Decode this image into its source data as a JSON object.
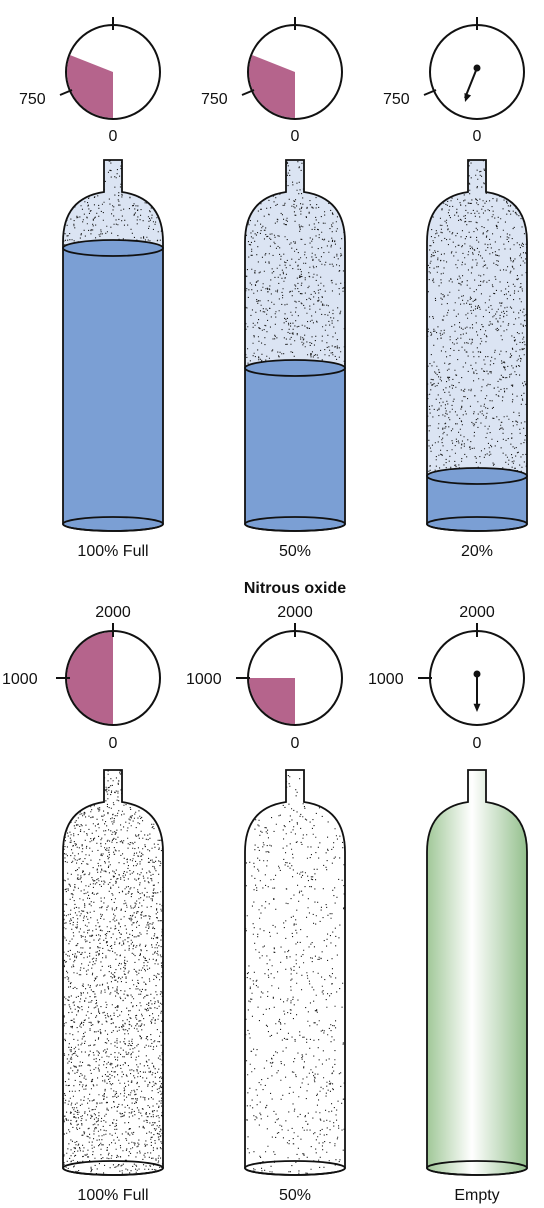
{
  "colors": {
    "gauge_fill": "#b5648c",
    "liquid": "#7b9fd4",
    "vapor_base": "#dbe4f3",
    "dots": "#1a1a1a",
    "empty_tint": "#bcd8b6",
    "outline": "#111111"
  },
  "section_title": "Nitrous oxide",
  "rows": [
    {
      "gauge_max_label": "",
      "gauge_mid_label": "750",
      "gauge_zero_label": "0",
      "cylinders": [
        {
          "gauge_fraction": 0.083,
          "needle": false,
          "liquid_fraction": 0.9,
          "dot_density": "medium",
          "empty": false,
          "caption": "100% Full"
        },
        {
          "gauge_fraction": 0.083,
          "needle": false,
          "liquid_fraction": 0.55,
          "dot_density": "medium",
          "empty": false,
          "caption": "50%"
        },
        {
          "gauge_fraction": 0.0,
          "needle": true,
          "liquid_fraction": 0.18,
          "dot_density": "medium",
          "empty": false,
          "caption": "20%"
        }
      ]
    },
    {
      "gauge_max_label": "2000",
      "gauge_mid_label": "1000",
      "gauge_zero_label": "0",
      "cylinders": [
        {
          "gauge_fraction": 0.5,
          "needle": false,
          "liquid_fraction": 0,
          "dot_density": "high",
          "empty": false,
          "caption": "100% Full"
        },
        {
          "gauge_fraction": 0.25,
          "needle": false,
          "liquid_fraction": 0,
          "dot_density": "low",
          "empty": false,
          "caption": "50%"
        },
        {
          "gauge_fraction": 0.0,
          "needle": true,
          "liquid_fraction": 0,
          "dot_density": "none",
          "empty": true,
          "caption": "Empty"
        }
      ]
    }
  ]
}
